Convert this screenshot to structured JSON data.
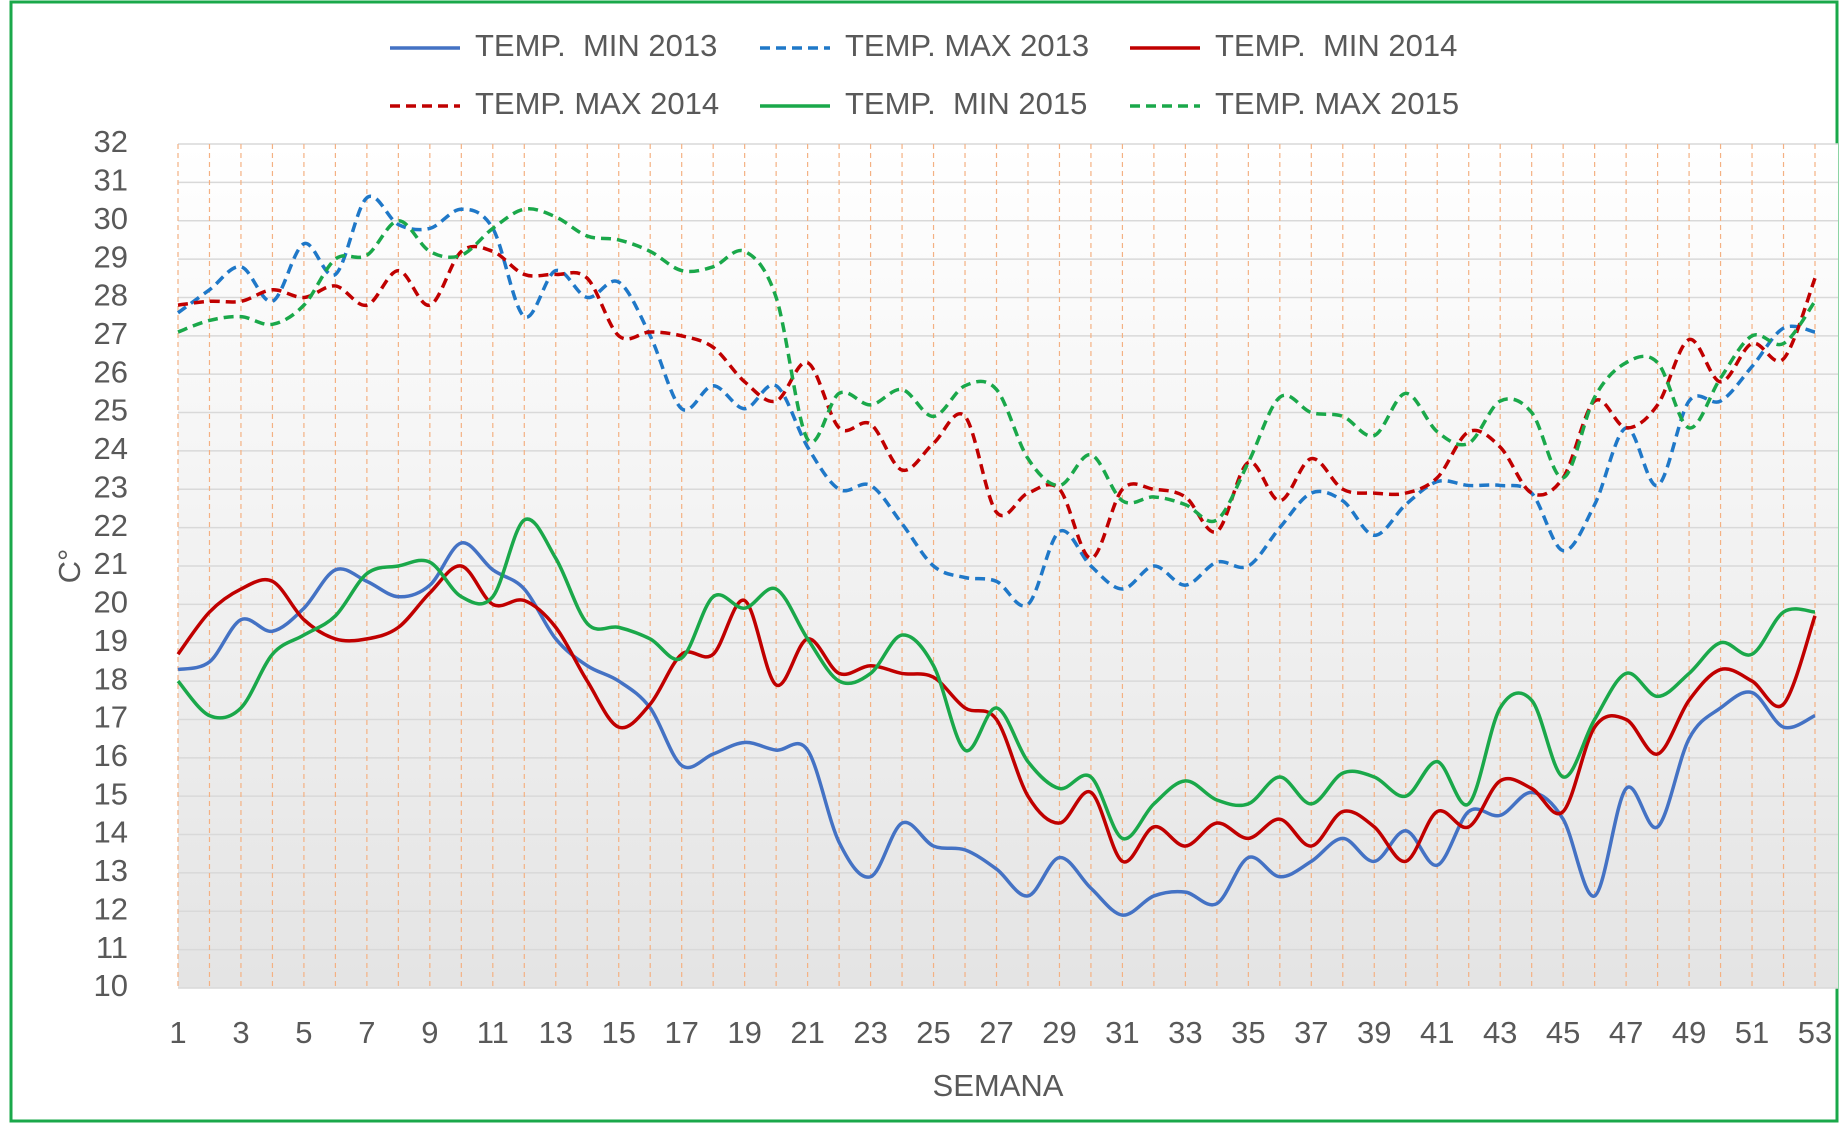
{
  "chart_data": {
    "type": "line",
    "x_label": "SEMANA",
    "y_label": "C°",
    "x": [
      1,
      2,
      3,
      4,
      5,
      6,
      7,
      8,
      9,
      10,
      11,
      12,
      13,
      14,
      15,
      16,
      17,
      18,
      19,
      20,
      21,
      22,
      23,
      24,
      25,
      26,
      27,
      28,
      29,
      30,
      31,
      32,
      33,
      34,
      35,
      36,
      37,
      38,
      39,
      40,
      41,
      42,
      43,
      44,
      45,
      46,
      47,
      48,
      49,
      50,
      51,
      52,
      53
    ],
    "xlim": [
      1,
      53
    ],
    "xticks": [
      1,
      3,
      5,
      7,
      9,
      11,
      13,
      15,
      17,
      19,
      21,
      23,
      25,
      27,
      29,
      31,
      33,
      35,
      37,
      39,
      41,
      43,
      45,
      47,
      49,
      51,
      53
    ],
    "ylim": [
      10,
      32
    ],
    "yticks": [
      10,
      11,
      12,
      13,
      14,
      15,
      16,
      17,
      18,
      19,
      20,
      21,
      22,
      23,
      24,
      25,
      26,
      27,
      28,
      29,
      30,
      31,
      32
    ],
    "grid": true,
    "series": [
      {
        "name": "TEMP.  MIN 2013",
        "color": "#4472c4",
        "dashed": false,
        "values": [
          18.3,
          18.5,
          19.6,
          19.3,
          19.9,
          20.9,
          20.6,
          20.2,
          20.5,
          21.6,
          20.9,
          20.4,
          19.1,
          18.4,
          18,
          17.3,
          15.8,
          16.1,
          16.4,
          16.2,
          16.2,
          13.8,
          12.9,
          14.3,
          13.7,
          13.6,
          13.1,
          12.4,
          13.4,
          12.6,
          11.9,
          12.4,
          12.5,
          12.2,
          13.4,
          12.9,
          13.3,
          13.9,
          13.3,
          14.1,
          13.2,
          14.6,
          14.5,
          15.1,
          14.4,
          12.4,
          15.2,
          14.2,
          16.5,
          17.3,
          17.7,
          16.8,
          17.1
        ]
      },
      {
        "name": "TEMP. MAX 2013",
        "color": "#1f78c8",
        "dashed": true,
        "values": [
          27.6,
          28.2,
          28.8,
          27.9,
          29.4,
          28.6,
          30.6,
          29.9,
          29.8,
          30.3,
          29.8,
          27.5,
          28.7,
          28,
          28.4,
          27,
          25.1,
          25.7,
          25.1,
          25.7,
          24.1,
          23,
          23.1,
          22.1,
          21,
          20.7,
          20.6,
          20,
          21.9,
          21,
          20.4,
          21,
          20.5,
          21.1,
          21,
          22,
          22.9,
          22.7,
          21.8,
          22.6,
          23.2,
          23.1,
          23.1,
          22.9,
          21.4,
          22.6,
          24.6,
          23.1,
          25.3,
          25.3,
          26.2,
          27.2,
          27.1
        ]
      },
      {
        "name": "TEMP.  MIN 2014",
        "color": "#c00000",
        "dashed": false,
        "values": [
          18.7,
          19.8,
          20.4,
          20.6,
          19.6,
          19.1,
          19.1,
          19.4,
          20.3,
          21,
          20,
          20.1,
          19.4,
          18,
          16.8,
          17.4,
          18.7,
          18.7,
          20.1,
          17.9,
          19.1,
          18.2,
          18.4,
          18.2,
          18.1,
          17.3,
          17,
          15,
          14.3,
          15.1,
          13.3,
          14.2,
          13.7,
          14.3,
          13.9,
          14.4,
          13.7,
          14.6,
          14.2,
          13.3,
          14.6,
          14.2,
          15.4,
          15.2,
          14.6,
          16.8,
          17,
          16.1,
          17.5,
          18.3,
          18,
          17.4,
          19.7
        ]
      },
      {
        "name": "TEMP. MAX 2014",
        "color": "#c00000",
        "dashed": true,
        "values": [
          27.8,
          27.9,
          27.9,
          28.2,
          28,
          28.3,
          27.8,
          28.7,
          27.8,
          29.2,
          29.2,
          28.6,
          28.6,
          28.5,
          27,
          27.1,
          27,
          26.7,
          25.8,
          25.3,
          26.3,
          24.6,
          24.7,
          23.5,
          24.2,
          24.9,
          22.4,
          22.9,
          23,
          21.2,
          23,
          23,
          22.8,
          21.9,
          23.7,
          22.7,
          23.8,
          23,
          22.9,
          22.9,
          23.3,
          24.5,
          24.1,
          22.9,
          23.3,
          25.3,
          24.6,
          25.2,
          26.9,
          25.8,
          26.8,
          26.4,
          28.5
        ]
      },
      {
        "name": "TEMP.  MIN 2015",
        "color": "#1aa84a",
        "dashed": false,
        "values": [
          18,
          17.1,
          17.3,
          18.7,
          19.2,
          19.7,
          20.8,
          21,
          21.1,
          20.2,
          20.2,
          22.2,
          21.2,
          19.5,
          19.4,
          19.1,
          18.6,
          20.2,
          19.9,
          20.4,
          19.1,
          18,
          18.2,
          19.2,
          18.4,
          16.2,
          17.3,
          15.9,
          15.2,
          15.5,
          13.9,
          14.8,
          15.4,
          14.9,
          14.8,
          15.5,
          14.8,
          15.6,
          15.5,
          15,
          15.9,
          14.8,
          17.3,
          17.5,
          15.5,
          17,
          18.2,
          17.6,
          18.2,
          19,
          18.7,
          19.8,
          19.8
        ]
      },
      {
        "name": "TEMP. MAX 2015",
        "color": "#1aa84a",
        "dashed": true,
        "values": [
          27.1,
          27.4,
          27.5,
          27.3,
          27.8,
          29,
          29.1,
          30,
          29.2,
          29.1,
          29.8,
          30.3,
          30.1,
          29.6,
          29.5,
          29.2,
          28.7,
          28.8,
          29.2,
          28,
          24.3,
          25.5,
          25.2,
          25.6,
          24.9,
          25.7,
          25.6,
          23.8,
          23.1,
          23.9,
          22.7,
          22.8,
          22.6,
          22.2,
          23.7,
          25.4,
          25,
          24.9,
          24.4,
          25.5,
          24.5,
          24.2,
          25.3,
          25,
          23.3,
          25.4,
          26.3,
          26.3,
          24.6,
          25.9,
          27,
          26.8,
          27.9
        ]
      }
    ]
  }
}
